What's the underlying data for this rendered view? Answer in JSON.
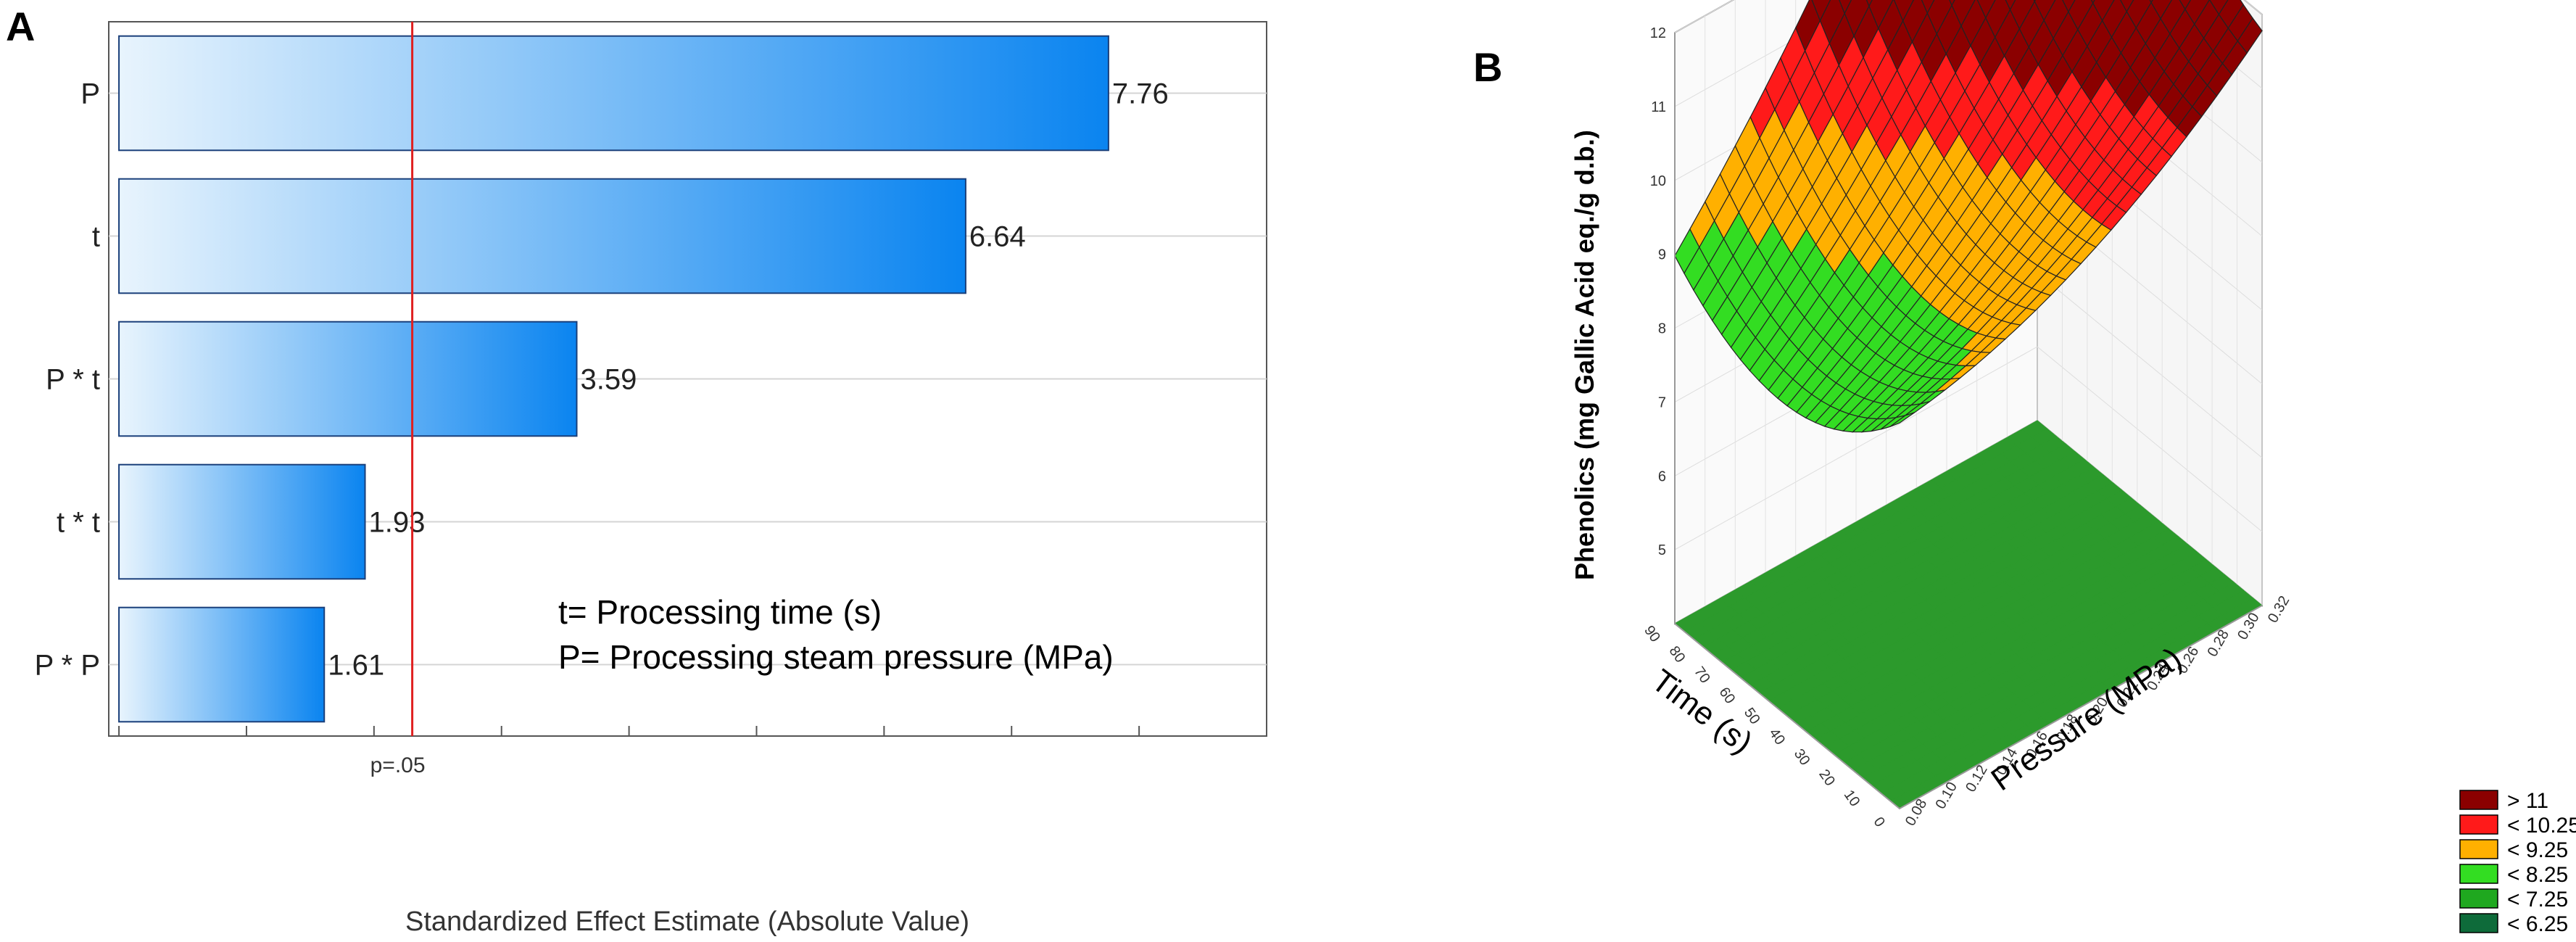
{
  "panel_a": {
    "letter": "A",
    "note_line1": "t= Processing time (s)",
    "note_line2": "P= Processing steam pressure (MPa)"
  },
  "panel_b": {
    "letter": "B"
  },
  "chart_data": [
    {
      "type": "bar",
      "orientation": "horizontal",
      "title": "",
      "categories": [
        "P",
        "t",
        "P * t",
        "t * t",
        "P * P"
      ],
      "values": [
        7.76,
        6.64,
        3.59,
        1.93,
        1.61
      ],
      "value_labels": [
        "7.76",
        "6.64",
        "3.59",
        "1.93",
        "1.61"
      ],
      "xlabel": "Standardized Effect Estimate (Absolute Value)",
      "ylabel": "",
      "xlim": [
        -0.08,
        9.0
      ],
      "reference_line": {
        "value": 2.3,
        "label": "p=.05",
        "color": "#e02020"
      },
      "bar_color_light": "#e8f4fd",
      "bar_color_dark": "#0a84f0",
      "grid": true
    },
    {
      "type": "surface",
      "title": "",
      "xlabel": "Pressure (MPa)",
      "ylabel": "Time (s)",
      "zlabel": "Phenolics (mg Gallic Acid eq./g d.b.)",
      "x_ticks": [
        "0.08",
        "0.10",
        "0.12",
        "0.14",
        "0.16",
        "0.18",
        "0.20",
        "0.22",
        "0.24",
        "0.26",
        "0.28",
        "0.30",
        "0.32"
      ],
      "y_ticks": [
        "0",
        "10",
        "20",
        "30",
        "40",
        "50",
        "60",
        "70",
        "80",
        "90"
      ],
      "z_ticks": [
        "5",
        "6",
        "7",
        "8",
        "9",
        "10",
        "11",
        "12"
      ],
      "xlim": [
        0.08,
        0.32
      ],
      "ylim": [
        0,
        90
      ],
      "zlim": [
        4,
        12
      ],
      "legend": [
        {
          "label": "> 11",
          "color": "#8b0000"
        },
        {
          "label": "< 10.25",
          "color": "#ff1a1a"
        },
        {
          "label": "< 9.25",
          "color": "#ffb000"
        },
        {
          "label": "< 8.25",
          "color": "#33dd22"
        },
        {
          "label": "< 7.25",
          "color": "#1fa81f"
        },
        {
          "label": "< 6.25",
          "color": "#0e6b3a"
        }
      ]
    }
  ]
}
